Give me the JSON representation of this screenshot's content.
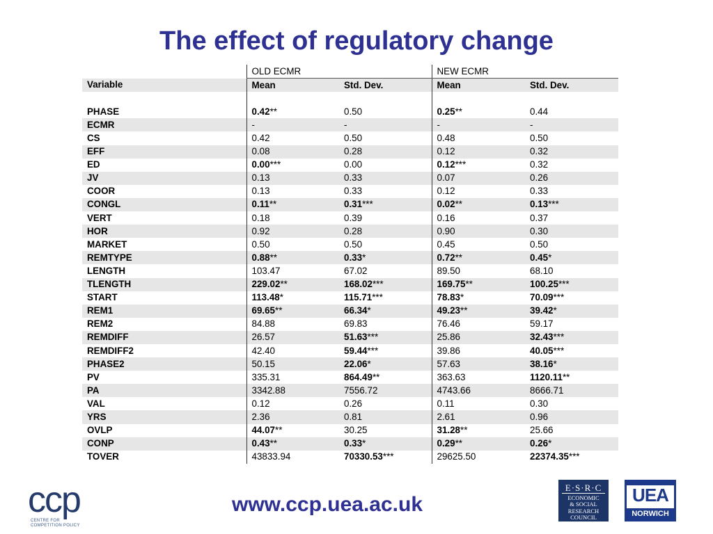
{
  "title": "The effect of regulatory change",
  "table": {
    "group_headers": [
      "OLD ECMR",
      "NEW ECMR"
    ],
    "columns": [
      "Variable",
      "Mean",
      "Std. Dev.",
      "Mean",
      "Std. Dev."
    ],
    "rows": [
      {
        "var": "PHASE",
        "cells": [
          {
            "v": "0.42",
            "s": "**",
            "b": true
          },
          {
            "v": "0.50"
          },
          {
            "v": "0.25",
            "s": "**",
            "b": true
          },
          {
            "v": "0.44"
          }
        ]
      },
      {
        "var": "ECMR",
        "cells": [
          {
            "v": "-"
          },
          {
            "v": "-"
          },
          {
            "v": "-"
          },
          {
            "v": "-"
          }
        ]
      },
      {
        "var": "CS",
        "cells": [
          {
            "v": "0.42"
          },
          {
            "v": "0.50"
          },
          {
            "v": "0.48"
          },
          {
            "v": "0.50"
          }
        ]
      },
      {
        "var": "EFF",
        "cells": [
          {
            "v": "0.08"
          },
          {
            "v": "0.28"
          },
          {
            "v": "0.12"
          },
          {
            "v": "0.32"
          }
        ]
      },
      {
        "var": "ED",
        "cells": [
          {
            "v": "0.00",
            "s": "***",
            "b": true
          },
          {
            "v": "0.00"
          },
          {
            "v": "0.12",
            "s": "***",
            "b": true
          },
          {
            "v": "0.32"
          }
        ]
      },
      {
        "var": "JV",
        "cells": [
          {
            "v": "0.13"
          },
          {
            "v": "0.33"
          },
          {
            "v": "0.07"
          },
          {
            "v": "0.26"
          }
        ]
      },
      {
        "var": "COOR",
        "cells": [
          {
            "v": "0.13"
          },
          {
            "v": "0.33"
          },
          {
            "v": "0.12"
          },
          {
            "v": "0.33"
          }
        ]
      },
      {
        "var": "CONGL",
        "cells": [
          {
            "v": "0.11",
            "s": "**",
            "b": true
          },
          {
            "v": "0.31",
            "s": "***",
            "b": true
          },
          {
            "v": "0.02",
            "s": "**",
            "b": true
          },
          {
            "v": "0.13",
            "s": "***",
            "b": true
          }
        ]
      },
      {
        "var": "VERT",
        "cells": [
          {
            "v": "0.18"
          },
          {
            "v": "0.39"
          },
          {
            "v": "0.16"
          },
          {
            "v": "0.37"
          }
        ]
      },
      {
        "var": "HOR",
        "cells": [
          {
            "v": "0.92"
          },
          {
            "v": "0.28"
          },
          {
            "v": "0.90"
          },
          {
            "v": "0.30"
          }
        ]
      },
      {
        "var": "MARKET",
        "cells": [
          {
            "v": "0.50"
          },
          {
            "v": "0.50"
          },
          {
            "v": "0.45"
          },
          {
            "v": "0.50"
          }
        ]
      },
      {
        "var": "REMTYPE",
        "cells": [
          {
            "v": "0.88",
            "s": "**",
            "b": true
          },
          {
            "v": "0.33",
            "s": "*",
            "b": true
          },
          {
            "v": "0.72",
            "s": "**",
            "b": true
          },
          {
            "v": "0.45",
            "s": "*",
            "b": true
          }
        ]
      },
      {
        "var": "LENGTH",
        "cells": [
          {
            "v": "103.47"
          },
          {
            "v": "67.02"
          },
          {
            "v": "89.50"
          },
          {
            "v": "68.10"
          }
        ]
      },
      {
        "var": "TLENGTH",
        "cells": [
          {
            "v": "229.02",
            "s": "**",
            "b": true
          },
          {
            "v": "168.02",
            "s": "***",
            "b": true
          },
          {
            "v": "169.75",
            "s": "**",
            "b": true
          },
          {
            "v": "100.25",
            "s": "***",
            "b": true
          }
        ]
      },
      {
        "var": "START",
        "cells": [
          {
            "v": "113.48",
            "s": "*",
            "b": true
          },
          {
            "v": "115.71",
            "s": "***",
            "b": true
          },
          {
            "v": "78.83",
            "s": "*",
            "b": true
          },
          {
            "v": "70.09",
            "s": "***",
            "b": true
          }
        ]
      },
      {
        "var": "REM1",
        "cells": [
          {
            "v": "69.65",
            "s": "**",
            "b": true
          },
          {
            "v": "66.34",
            "s": "*",
            "b": true
          },
          {
            "v": "49.23",
            "s": "**",
            "b": true
          },
          {
            "v": "39.42",
            "s": "*",
            "b": true
          }
        ]
      },
      {
        "var": "REM2",
        "cells": [
          {
            "v": "84.88"
          },
          {
            "v": "69.83"
          },
          {
            "v": "76.46"
          },
          {
            "v": "59.17"
          }
        ]
      },
      {
        "var": "REMDIFF",
        "cells": [
          {
            "v": "26.57"
          },
          {
            "v": "51.63",
            "s": "***",
            "b": true
          },
          {
            "v": "25.86"
          },
          {
            "v": "32.43",
            "s": "***",
            "b": true
          }
        ]
      },
      {
        "var": "REMDIFF2",
        "cells": [
          {
            "v": "42.40"
          },
          {
            "v": "59.44",
            "s": "***",
            "b": true
          },
          {
            "v": "39.86"
          },
          {
            "v": "40.05",
            "s": "***",
            "b": true
          }
        ]
      },
      {
        "var": "PHASE2",
        "cells": [
          {
            "v": "50.15"
          },
          {
            "v": "22.06",
            "s": "*",
            "b": true
          },
          {
            "v": "57.63"
          },
          {
            "v": "38.16",
            "s": "*",
            "b": true
          }
        ]
      },
      {
        "var": "PV",
        "cells": [
          {
            "v": "335.31"
          },
          {
            "v": "864.49",
            "s": "**",
            "b": true
          },
          {
            "v": "363.63"
          },
          {
            "v": "1120.11",
            "s": "**",
            "b": true
          }
        ]
      },
      {
        "var": "PA",
        "cells": [
          {
            "v": "3342.88"
          },
          {
            "v": "7556.72"
          },
          {
            "v": "4743.66"
          },
          {
            "v": "8666.71"
          }
        ]
      },
      {
        "var": "VAL",
        "cells": [
          {
            "v": "0.12"
          },
          {
            "v": "0.26"
          },
          {
            "v": "0.11"
          },
          {
            "v": "0.30"
          }
        ]
      },
      {
        "var": "YRS",
        "cells": [
          {
            "v": "2.36"
          },
          {
            "v": "0.81"
          },
          {
            "v": "2.61"
          },
          {
            "v": "0.96"
          }
        ]
      },
      {
        "var": "OVLP",
        "cells": [
          {
            "v": "44.07",
            "s": "**",
            "b": true
          },
          {
            "v": "30.25"
          },
          {
            "v": "31.28",
            "s": "**",
            "b": true
          },
          {
            "v": "25.66"
          }
        ]
      },
      {
        "var": "CONP",
        "cells": [
          {
            "v": "0.43",
            "s": "**",
            "b": true
          },
          {
            "v": "0.33",
            "s": "*",
            "b": true
          },
          {
            "v": "0.29",
            "s": "**",
            "b": true
          },
          {
            "v": "0.26",
            "s": "*",
            "b": true
          }
        ]
      },
      {
        "var": "TOVER",
        "cells": [
          {
            "v": "43833.94"
          },
          {
            "v": "70330.53",
            "s": "***",
            "b": true
          },
          {
            "v": "29625.50"
          },
          {
            "v": "22374.35",
            "s": "***",
            "b": true
          }
        ]
      }
    ]
  },
  "footer": {
    "url": "www.ccp.uea.ac.uk",
    "ccp_logo": {
      "mark": "ccp",
      "sub_line1": "CENTRE FOR",
      "sub_line2": "COMPETITION POLICY"
    },
    "esrc_logo": {
      "line1": "E·S·R·C",
      "line2": "ECONOMIC",
      "line3": "& SOCIAL",
      "line4": "RESEARCH",
      "line5": "COUNCIL"
    },
    "uea_logo": {
      "main": "UEA",
      "sub": "NORWICH"
    }
  },
  "colors": {
    "title": "#2e3191",
    "shade": "#e6e6e6",
    "logo_navy": "#1d3466"
  }
}
